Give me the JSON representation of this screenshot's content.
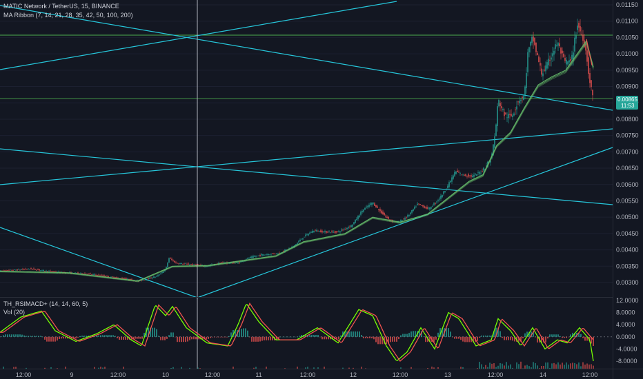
{
  "window": {
    "title": "MATIC Network / TetherUS, 15, BINANCE"
  },
  "legend": {
    "symbol": "MATIC Network / TetherUS, 15, BINANCE",
    "ma_ribbon": "MA Ribbon (7, 14, 21, 28, 35, 42, 50, 100, 200)",
    "indicator": "TH_RSIMACD+ (14, 14, 60, 5)",
    "volume": "Vol (20)"
  },
  "colors": {
    "background": "#131722",
    "up": "#26a69a",
    "down": "#ef5350",
    "trendline": "#26c6da",
    "level": "#4caf50",
    "ribbon": "#66bb6a",
    "osc_fast": "#76ff03",
    "osc_slow": "#ef5350",
    "price_tag": "#26a69a",
    "crosshair": "#b2b5be"
  },
  "price_axis": {
    "ticks": [
      "0.01150",
      "0.01100",
      "0.01050",
      "0.01000",
      "0.00950",
      "0.00900",
      "0.00850",
      "0.00800",
      "0.00750",
      "0.00700",
      "0.00650",
      "0.00600",
      "0.00550",
      "0.00500",
      "0.00450",
      "0.00400",
      "0.00350",
      "0.00300"
    ],
    "current_price": "0.00865",
    "countdown": "11:53"
  },
  "osc_axis": {
    "ticks": [
      "12.0000",
      "8.0000",
      "4.0000",
      "0.0000",
      "-4.0000",
      "-8.0000"
    ]
  },
  "time_axis": {
    "labels": [
      "12:00",
      "9",
      "12:00",
      "10",
      "12:00",
      "11",
      "12:00",
      "12",
      "12:00",
      "13",
      "12:00",
      "14",
      "12:00"
    ]
  },
  "chart_data": {
    "type": "candlestick",
    "title": "MATIC Network / TetherUS, 15, BINANCE",
    "xlabel": "",
    "ylabel": "",
    "ylim": [
      0.0028,
      0.0117
    ],
    "x_labels": [
      "12:00",
      "9",
      "12:00",
      "10",
      "12:00",
      "11",
      "12:00",
      "12",
      "12:00",
      "13",
      "12:00",
      "14",
      "12:00"
    ],
    "series": [
      {
        "name": "price",
        "points": [
          [
            0,
            0.00335
          ],
          [
            20,
            0.00338
          ],
          [
            45,
            0.00342
          ],
          [
            70,
            0.00334
          ],
          [
            95,
            0.0033
          ],
          [
            120,
            0.00328
          ],
          [
            145,
            0.00322
          ],
          [
            165,
            0.00315
          ],
          [
            185,
            0.0031
          ],
          [
            200,
            0.00305
          ],
          [
            212,
            0.0031
          ],
          [
            228,
            0.0032
          ],
          [
            240,
            0.0034
          ],
          [
            245,
            0.00375
          ],
          [
            255,
            0.0036
          ],
          [
            275,
            0.00355
          ],
          [
            300,
            0.0035
          ],
          [
            320,
            0.0036
          ],
          [
            345,
            0.0036
          ],
          [
            360,
            0.00375
          ],
          [
            380,
            0.00385
          ],
          [
            405,
            0.0039
          ],
          [
            425,
            0.0041
          ],
          [
            440,
            0.0044
          ],
          [
            455,
            0.0046
          ],
          [
            470,
            0.00455
          ],
          [
            490,
            0.00455
          ],
          [
            510,
            0.00475
          ],
          [
            525,
            0.0052
          ],
          [
            540,
            0.00545
          ],
          [
            550,
            0.0052
          ],
          [
            565,
            0.0049
          ],
          [
            578,
            0.00485
          ],
          [
            592,
            0.00505
          ],
          [
            605,
            0.0054
          ],
          [
            622,
            0.00525
          ],
          [
            638,
            0.0056
          ],
          [
            650,
            0.006
          ],
          [
            660,
            0.0064
          ],
          [
            670,
            0.0063
          ],
          [
            685,
            0.00625
          ],
          [
            698,
            0.0064
          ],
          [
            712,
            0.0068
          ],
          [
            718,
            0.0076
          ],
          [
            722,
            0.0086
          ],
          [
            732,
            0.0081
          ],
          [
            742,
            0.0081
          ],
          [
            752,
            0.0086
          ],
          [
            760,
            0.0087
          ],
          [
            765,
            0.01
          ],
          [
            772,
            0.0105
          ],
          [
            778,
            0.01
          ],
          [
            785,
            0.0094
          ],
          [
            792,
            0.0096
          ],
          [
            800,
            0.01
          ],
          [
            808,
            0.01035
          ],
          [
            818,
            0.00975
          ],
          [
            828,
            0.00975
          ],
          [
            837,
            0.0109
          ],
          [
            845,
            0.0105
          ],
          [
            850,
            0.01
          ],
          [
            855,
            0.0091
          ],
          [
            860,
            0.00865
          ]
        ]
      },
      {
        "name": "MA Ribbon",
        "points": [
          [
            0,
            0.00335
          ],
          [
            100,
            0.0033
          ],
          [
            200,
            0.00305
          ],
          [
            250,
            0.0035
          ],
          [
            300,
            0.00352
          ],
          [
            400,
            0.00382
          ],
          [
            440,
            0.00425
          ],
          [
            500,
            0.0045
          ],
          [
            540,
            0.005
          ],
          [
            580,
            0.00485
          ],
          [
            620,
            0.0051
          ],
          [
            650,
            0.0056
          ],
          [
            680,
            0.0061
          ],
          [
            700,
            0.0063
          ],
          [
            720,
            0.0072
          ],
          [
            740,
            0.0076
          ],
          [
            760,
            0.00835
          ],
          [
            780,
            0.00905
          ],
          [
            800,
            0.0093
          ],
          [
            820,
            0.0095
          ],
          [
            840,
            0.0101
          ],
          [
            850,
            0.0104
          ],
          [
            860,
            0.0096
          ]
        ]
      },
      {
        "name": "TH_RSIMACD+",
        "points": [
          [
            0,
            1.5
          ],
          [
            30,
            6.5
          ],
          [
            60,
            8.5
          ],
          [
            80,
            2
          ],
          [
            110,
            -1.5
          ],
          [
            140,
            1
          ],
          [
            165,
            4
          ],
          [
            190,
            -1
          ],
          [
            205,
            -3
          ],
          [
            225,
            10.5
          ],
          [
            240,
            7
          ],
          [
            250,
            10
          ],
          [
            270,
            3
          ],
          [
            300,
            -2
          ],
          [
            330,
            -3
          ],
          [
            345,
            4
          ],
          [
            357,
            11
          ],
          [
            375,
            5
          ],
          [
            400,
            -1
          ],
          [
            430,
            -1
          ],
          [
            460,
            3
          ],
          [
            490,
            -2
          ],
          [
            520,
            9
          ],
          [
            540,
            7
          ],
          [
            560,
            -3
          ],
          [
            575,
            -8
          ],
          [
            590,
            -5
          ],
          [
            610,
            3
          ],
          [
            630,
            -4
          ],
          [
            650,
            8
          ],
          [
            665,
            6
          ],
          [
            690,
            -3
          ],
          [
            712,
            -1
          ],
          [
            722,
            6
          ],
          [
            740,
            2
          ],
          [
            755,
            -3
          ],
          [
            772,
            3
          ],
          [
            790,
            -4
          ],
          [
            808,
            -1
          ],
          [
            822,
            -2
          ],
          [
            840,
            3
          ],
          [
            855,
            -1
          ],
          [
            860,
            -8
          ]
        ]
      }
    ]
  }
}
